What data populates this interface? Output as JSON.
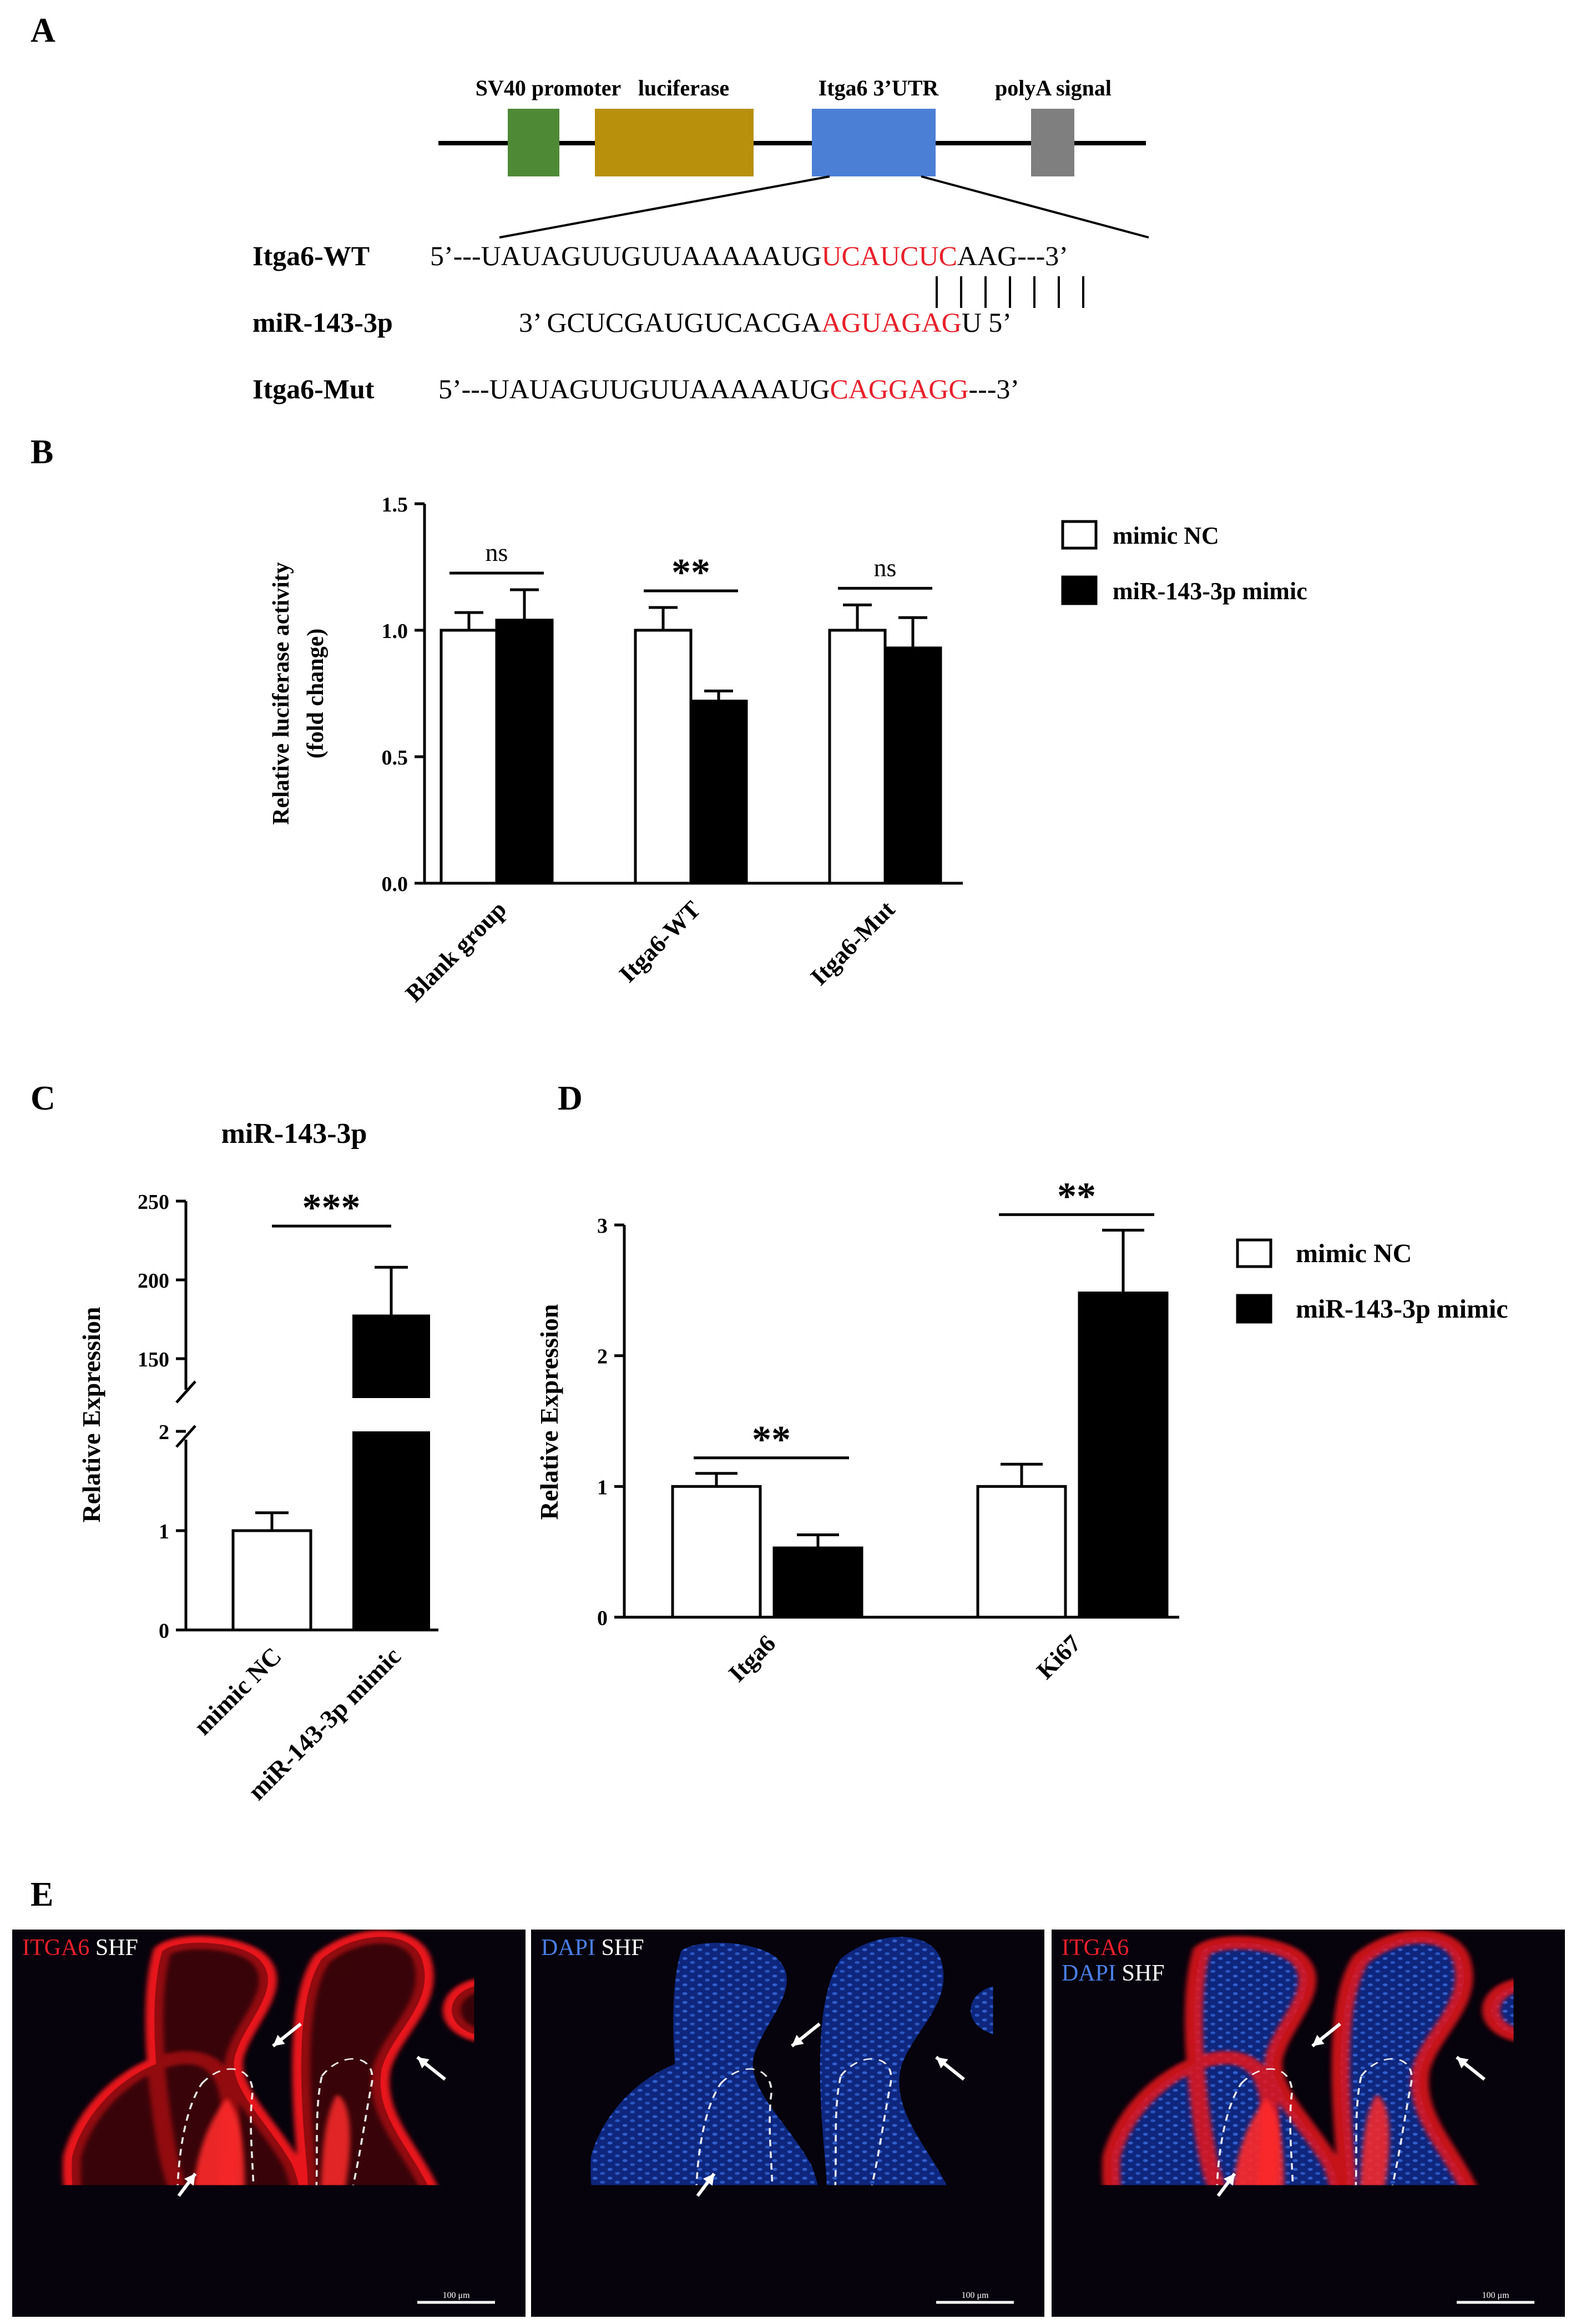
{
  "panels": {
    "A": "A",
    "B": "B",
    "C": "C",
    "D": "D",
    "E": "E"
  },
  "colors": {
    "sv40": "#4e8a36",
    "luciferase": "#b8900c",
    "utr": "#4b7fd6",
    "polya": "#7f7f7f",
    "red": "#e8202a",
    "black": "#000000",
    "white": "#ffffff"
  },
  "panelA": {
    "labels": {
      "sv40": "SV40 promoter",
      "luciferase": "luciferase",
      "utr": "Itga6 3’UTR",
      "polya": "polyA signal"
    },
    "wt": {
      "name": "Itga6-WT",
      "prefix": "5’---UAUAGUUGUUAAAAAUG",
      "site": "UCAUCUC",
      "suffix": "AAG---3’"
    },
    "mir": {
      "name": "miR-143-3p",
      "prefix": "3’   GCUCGAUGUCACGA",
      "site": "AGUAGAG",
      "suffix": "U    5’"
    },
    "mut": {
      "name": "Itga6-Mut",
      "prefix": "5’---UAUAGUUGUUAAAAAUG",
      "site": "CAGGAGG",
      "suffix": "---3’"
    },
    "pairs": 7
  },
  "legend": {
    "nc": "mimic NC",
    "mimic": "miR-143-3p mimic"
  },
  "chart_data": [
    {
      "type": "bar",
      "panel": "B",
      "categories": [
        "Blank group",
        "Itga6-WT",
        "Itga6-Mut"
      ],
      "series": [
        {
          "name": "mimic NC",
          "values": [
            1.0,
            1.0,
            1.0
          ],
          "errors": [
            0.07,
            0.09,
            0.1
          ]
        },
        {
          "name": "miR-143-3p mimic",
          "values": [
            1.04,
            0.72,
            0.93
          ],
          "errors": [
            0.12,
            0.04,
            0.12
          ]
        }
      ],
      "ylabel": [
        "Relative luciferase activity",
        "(fold change)"
      ],
      "ylim": [
        0,
        1.5
      ],
      "yticks": [
        "0.0",
        "0.5",
        "1.0",
        "1.5"
      ],
      "significance": [
        "ns",
        "**",
        "ns"
      ]
    },
    {
      "type": "bar",
      "panel": "C",
      "title": "miR-143-3p",
      "categories": [
        "mimic NC",
        "miR-143-3p mimic"
      ],
      "values": [
        1.0,
        178
      ],
      "errors": [
        0.18,
        30
      ],
      "ylabel": "Relative Expression",
      "axis_break": [
        2,
        125
      ],
      "yticks": [
        "0",
        "1",
        "2",
        "150",
        "200",
        "250"
      ],
      "significance": "***"
    },
    {
      "type": "bar",
      "panel": "D",
      "categories": [
        "Itga6",
        "Ki67"
      ],
      "series": [
        {
          "name": "mimic NC",
          "values": [
            1.0,
            1.0
          ],
          "errors": [
            0.1,
            0.17
          ]
        },
        {
          "name": "miR-143-3p mimic",
          "values": [
            0.53,
            2.48
          ],
          "errors": [
            0.1,
            0.48
          ]
        }
      ],
      "ylabel": "Relative Expression",
      "ylim": [
        0,
        3
      ],
      "yticks": [
        "0",
        "1",
        "2",
        "3"
      ],
      "significance": [
        "**",
        "**"
      ]
    }
  ],
  "panelE": [
    {
      "name": "itga6",
      "labels": [
        {
          "text": "ITGA6",
          "color": "#e8202a"
        },
        {
          "text": " SHF",
          "color": "#ffffff"
        }
      ],
      "scale": "100 μm"
    },
    {
      "name": "dapi",
      "labels": [
        {
          "text": "DAPI",
          "color": "#4a7ee6"
        },
        {
          "text": " SHF",
          "color": "#ffffff"
        }
      ],
      "scale": "100 μm"
    },
    {
      "name": "merge",
      "labels": [
        {
          "text": "ITGA6",
          "color": "#e8202a"
        },
        {
          "text": "DAPI",
          "color": "#4a7ee6",
          "newline": true
        },
        {
          "text": " SHF",
          "color": "#ffffff"
        }
      ],
      "scale": "100 μm"
    }
  ]
}
